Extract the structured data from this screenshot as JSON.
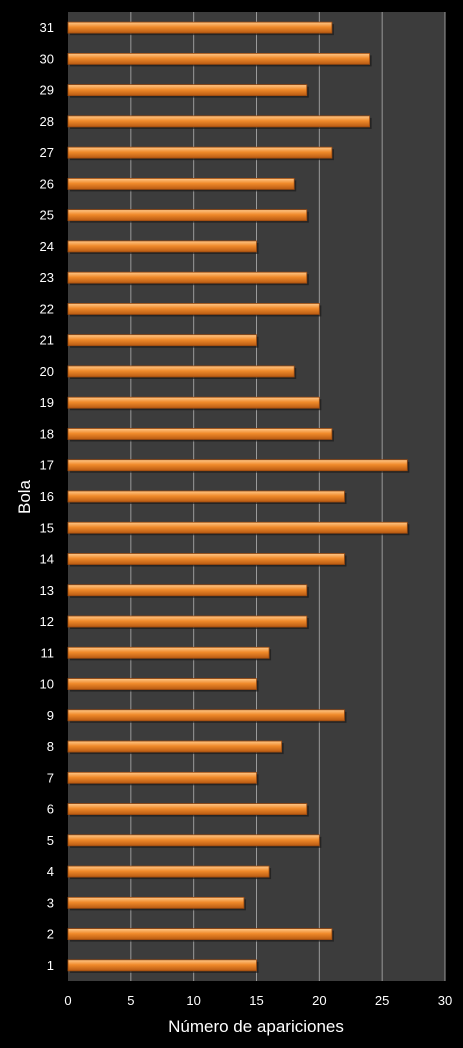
{
  "chart_data": {
    "type": "bar",
    "orientation": "horizontal",
    "categories": [
      "1",
      "2",
      "3",
      "4",
      "5",
      "6",
      "7",
      "8",
      "9",
      "10",
      "11",
      "12",
      "13",
      "14",
      "15",
      "16",
      "17",
      "18",
      "19",
      "20",
      "21",
      "22",
      "23",
      "24",
      "25",
      "26",
      "27",
      "28",
      "29",
      "30",
      "31"
    ],
    "values": [
      15,
      21,
      14,
      16,
      20,
      19,
      15,
      17,
      22,
      15,
      16,
      19,
      19,
      22,
      27,
      22,
      27,
      21,
      20,
      18,
      15,
      20,
      19,
      15,
      19,
      18,
      21,
      24,
      19,
      24,
      21
    ],
    "xlabel": "Número de apariciones",
    "ylabel": "Bola",
    "xlim": [
      0,
      30
    ],
    "xticks": [
      0,
      5,
      10,
      15,
      20,
      25,
      30
    ],
    "grid": true,
    "colors": {
      "background": "#000000",
      "plot_area": "#3c3c3c",
      "bar": "#f08a2a",
      "bar_highlight": "#ffc98a",
      "bar_shadow": "#9a4a10",
      "gridline": "#9a9a9a",
      "text": "#ffffff"
    }
  }
}
